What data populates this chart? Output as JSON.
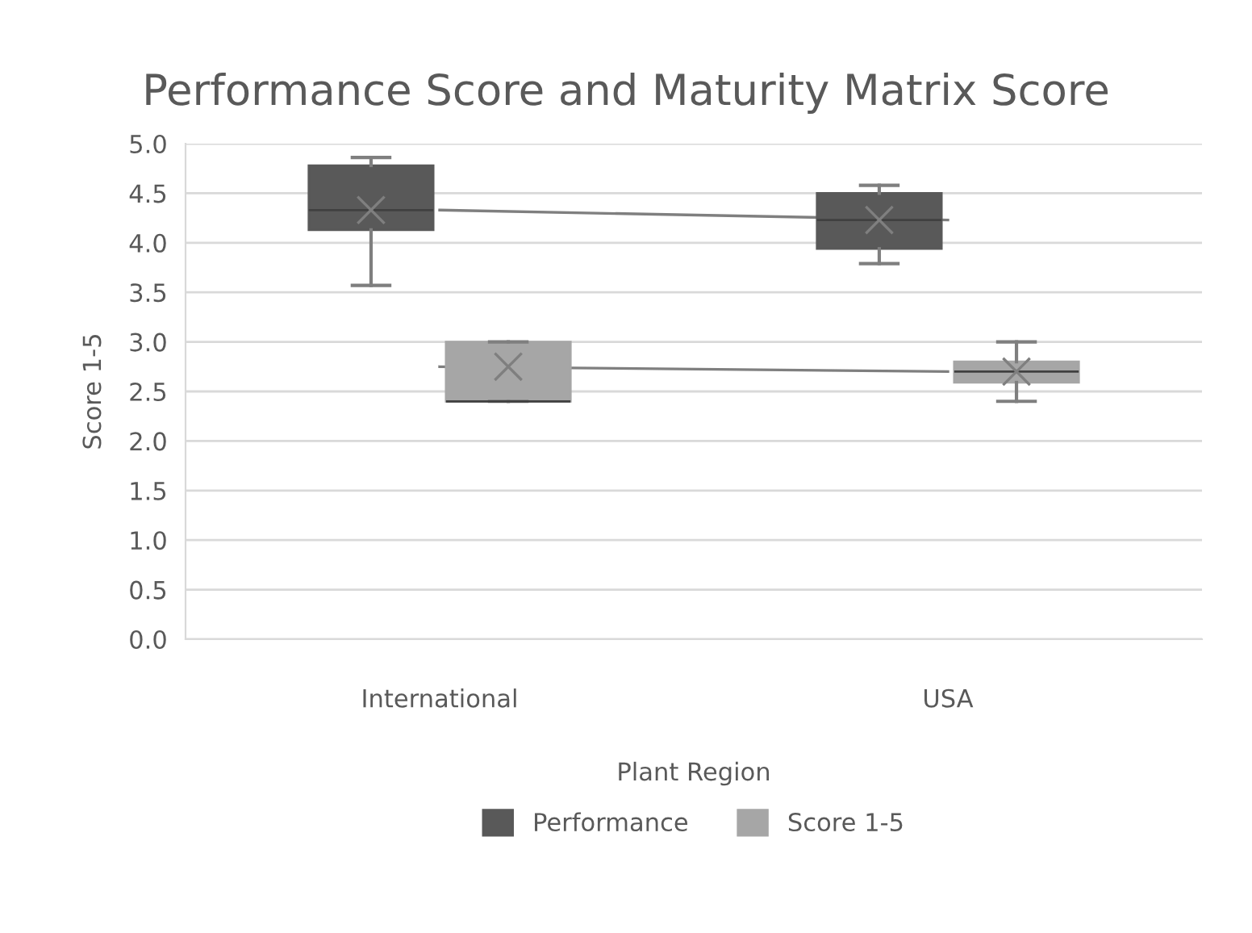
{
  "chart_data": {
    "type": "box",
    "title": "Performance Score and Maturity Matrix Score",
    "xlabel": "Plant Region",
    "ylabel": "Score 1-5",
    "categories": [
      "International",
      "USA"
    ],
    "series": [
      {
        "name": "Performance",
        "color": "#595959",
        "boxes": [
          {
            "low": 3.57,
            "q1": 4.13,
            "median": 4.33,
            "q3": 4.78,
            "high": 4.86,
            "mean": 4.33
          },
          {
            "low": 3.79,
            "q1": 3.94,
            "median": 4.23,
            "q3": 4.5,
            "high": 4.58,
            "mean": 4.23
          }
        ]
      },
      {
        "name": "Score 1-5",
        "color": "#a6a6a6",
        "boxes": [
          {
            "low": 2.4,
            "q1": 2.4,
            "median": 2.4,
            "q3": 3.0,
            "high": 3.0,
            "mean": 2.75
          },
          {
            "low": 2.4,
            "q1": 2.59,
            "median": 2.7,
            "q3": 2.8,
            "high": 3.0,
            "mean": 2.7
          }
        ]
      },
      {
        "type": "line",
        "color": "#7f7f7f",
        "values": [
          4.33,
          4.23
        ]
      },
      {
        "type": "line",
        "color": "#7f7f7f",
        "values": [
          2.75,
          2.7
        ]
      }
    ],
    "ylim": [
      0,
      5
    ],
    "yticks": [
      {
        "value": 0,
        "label": "0.0"
      },
      {
        "value": 0.5,
        "label": "0.5"
      },
      {
        "value": 1,
        "label": "1.0"
      },
      {
        "value": 1.5,
        "label": "1.5"
      },
      {
        "value": 2,
        "label": "2.0"
      },
      {
        "value": 2.5,
        "label": "2.5"
      },
      {
        "value": 3,
        "label": "3.0"
      },
      {
        "value": 3.5,
        "label": "3.5"
      },
      {
        "value": 4,
        "label": "4.0"
      },
      {
        "value": 4.5,
        "label": "4.5"
      },
      {
        "value": 5,
        "label": "5.0"
      }
    ],
    "grid": "y",
    "legend": "bottom"
  }
}
